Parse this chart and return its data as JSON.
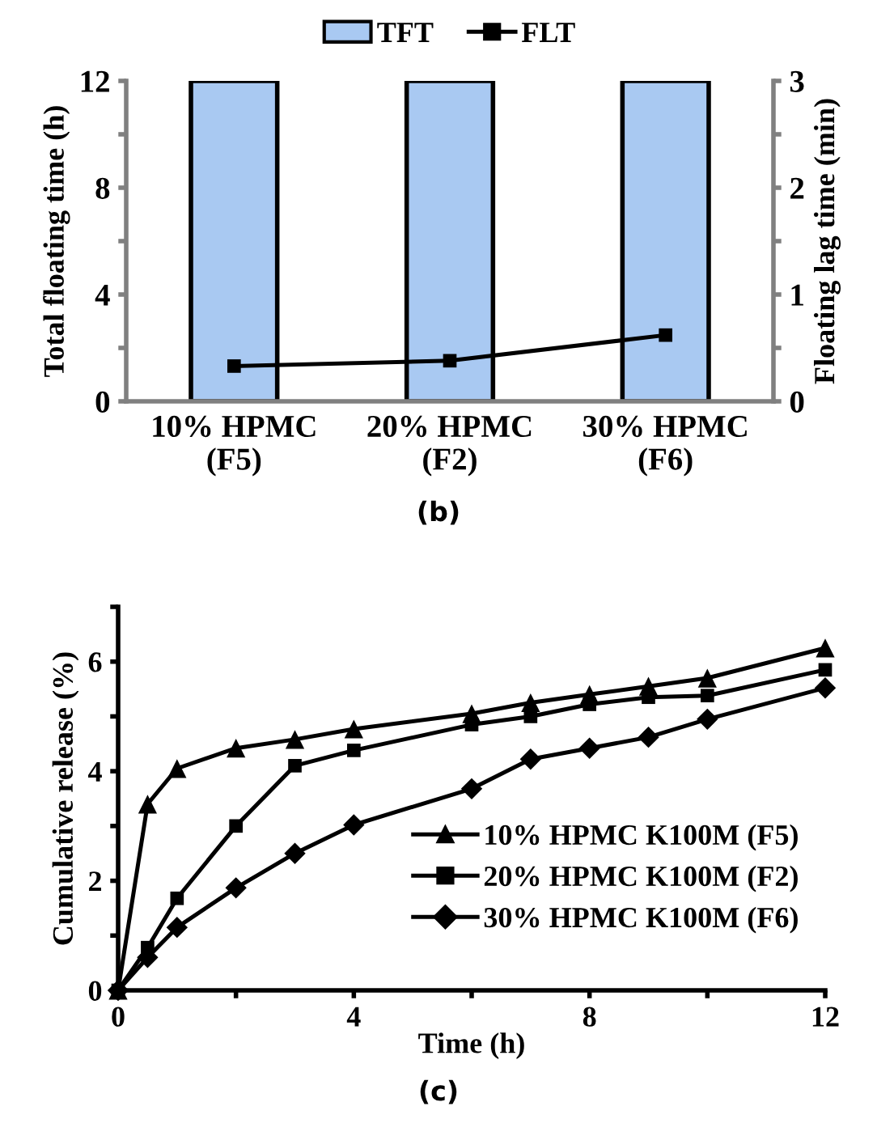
{
  "chart_data": [
    {
      "type": "bar",
      "categories": [
        "10% HPMC\n(F5)",
        "20% HPMC\n(F2)",
        "30% HPMC\n(F6)"
      ],
      "ylabel": "Total floating time (h)",
      "y2label": "Floating lag time (min)",
      "ylim": [
        0,
        12
      ],
      "yticks": [
        0,
        {
          "value": 2,
          "label": null
        },
        4,
        {
          "value": 6,
          "label": null
        },
        8,
        {
          "value": 10,
          "label": null
        },
        12
      ],
      "y2lim": [
        0,
        3
      ],
      "y2ticks": [
        0,
        {
          "value": 0.5,
          "label": null
        },
        1,
        {
          "value": 1.5,
          "label": null
        },
        2,
        {
          "value": 2.5,
          "label": null
        },
        3
      ],
      "legend": "top",
      "grid": false,
      "annotations": [
        "(b)"
      ],
      "series": [
        {
          "name": "TFT",
          "type": "bar",
          "color": "#a9c9f2",
          "values": [
            12,
            12,
            12
          ]
        },
        {
          "name": "FLT",
          "type": "line",
          "axis": "y2",
          "color": "#000000",
          "marker": "square",
          "values": [
            0.33,
            0.38,
            0.62
          ]
        }
      ]
    },
    {
      "type": "line",
      "xlabel": "Time (h)",
      "ylabel": "Cumulative release (%)",
      "xlim": [
        0,
        12
      ],
      "ylim": [
        0,
        7
      ],
      "xticks": [
        0,
        {
          "value": 2,
          "label": null
        },
        4,
        {
          "value": 6,
          "label": null
        },
        8,
        {
          "value": 10,
          "label": null
        },
        12
      ],
      "yticks": [
        0,
        {
          "value": 1,
          "label": null
        },
        2,
        {
          "value": 3,
          "label": null
        },
        4,
        {
          "value": 5,
          "label": null
        },
        6,
        {
          "value": 7,
          "label": null
        }
      ],
      "legend": "right",
      "grid": false,
      "annotations": [
        "(c)"
      ],
      "x": [
        0,
        0.5,
        1,
        2,
        3,
        4,
        6,
        7,
        8,
        9,
        10,
        12
      ],
      "series": [
        {
          "name": "10% HPMC K100M (F5)",
          "color": "#000000",
          "marker": "triangle",
          "values": [
            0,
            3.4,
            4.05,
            4.42,
            4.58,
            4.77,
            5.05,
            5.25,
            5.4,
            5.55,
            5.7,
            6.25
          ]
        },
        {
          "name": "20% HPMC K100M (F2)",
          "color": "#000000",
          "marker": "square",
          "values": [
            0,
            0.78,
            1.68,
            3.0,
            4.1,
            4.38,
            4.85,
            5.0,
            5.22,
            5.35,
            5.38,
            5.85
          ]
        },
        {
          "name": "30% HPMC K100M (F6)",
          "color": "#000000",
          "marker": "diamond",
          "values": [
            0,
            0.6,
            1.15,
            1.87,
            2.5,
            3.02,
            3.68,
            4.22,
            4.42,
            4.62,
            4.95,
            5.52
          ]
        }
      ]
    }
  ]
}
